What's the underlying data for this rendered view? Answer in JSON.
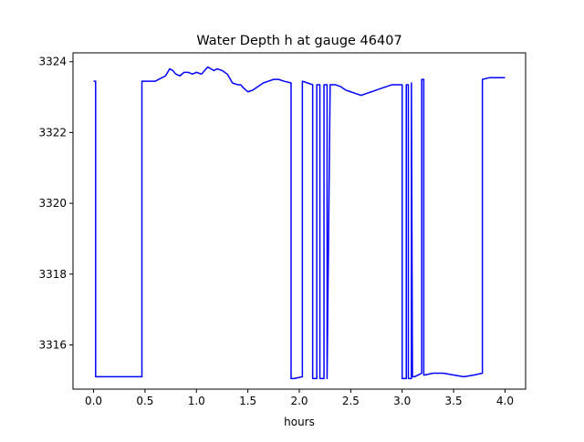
{
  "chart_data": {
    "type": "line",
    "title": "Water Depth h at gauge 46407",
    "xlabel": "hours",
    "ylabel": "",
    "xlim": [
      -0.2,
      4.2
    ],
    "ylim": [
      3314.75,
      3324.25
    ],
    "xticks": [
      0.0,
      0.5,
      1.0,
      1.5,
      2.0,
      2.5,
      3.0,
      3.5,
      4.0
    ],
    "xtick_labels": [
      "0.0",
      "0.5",
      "1.0",
      "1.5",
      "2.0",
      "2.5",
      "3.0",
      "3.5",
      "4.0"
    ],
    "yticks": [
      3316,
      3318,
      3320,
      3322,
      3324
    ],
    "ytick_labels": [
      "3316",
      "3318",
      "3320",
      "3322",
      "3324"
    ],
    "grid": false,
    "series": [
      {
        "color": "#0000ff",
        "x": [
          0.0,
          0.02,
          0.02,
          0.47,
          0.47,
          0.5,
          0.6,
          0.7,
          0.74,
          0.77,
          0.8,
          0.84,
          0.88,
          0.92,
          0.96,
          1.0,
          1.05,
          1.08,
          1.11,
          1.14,
          1.17,
          1.2,
          1.25,
          1.3,
          1.35,
          1.4,
          1.43,
          1.46,
          1.5,
          1.55,
          1.6,
          1.65,
          1.7,
          1.75,
          1.8,
          1.85,
          1.92,
          1.92,
          1.95,
          2.03,
          2.03,
          2.08,
          2.13,
          2.13,
          2.17,
          2.17,
          2.2,
          2.2,
          2.24,
          2.24,
          2.27,
          2.27,
          2.3,
          2.35,
          2.4,
          2.45,
          2.5,
          2.55,
          2.6,
          2.65,
          2.7,
          2.75,
          2.8,
          2.85,
          2.9,
          2.95,
          3.0,
          3.0,
          3.04,
          3.04,
          3.06,
          3.06,
          3.09,
          3.09,
          3.1,
          3.12,
          3.19,
          3.19,
          3.21,
          3.21,
          3.22,
          3.3,
          3.4,
          3.5,
          3.6,
          3.7,
          3.78,
          3.78,
          3.85,
          3.9,
          4.0
        ],
        "y": [
          3323.45,
          3323.45,
          3315.1,
          3315.1,
          3323.45,
          3323.45,
          3323.45,
          3323.6,
          3323.8,
          3323.75,
          3323.65,
          3323.6,
          3323.7,
          3323.7,
          3323.65,
          3323.7,
          3323.65,
          3323.75,
          3323.85,
          3323.8,
          3323.75,
          3323.8,
          3323.75,
          3323.65,
          3323.4,
          3323.35,
          3323.35,
          3323.25,
          3323.15,
          3323.2,
          3323.3,
          3323.4,
          3323.45,
          3323.5,
          3323.5,
          3323.45,
          3323.4,
          3315.05,
          3315.05,
          3315.1,
          3323.45,
          3323.4,
          3323.35,
          3315.05,
          3315.05,
          3323.35,
          3323.35,
          3315.05,
          3315.05,
          3323.35,
          3323.35,
          3315.05,
          3323.35,
          3323.35,
          3323.3,
          3323.2,
          3323.15,
          3323.1,
          3323.05,
          3323.1,
          3323.15,
          3323.2,
          3323.25,
          3323.3,
          3323.35,
          3323.35,
          3323.35,
          3315.05,
          3315.05,
          3323.35,
          3323.35,
          3315.05,
          3315.05,
          3323.4,
          3315.1,
          3315.1,
          3315.2,
          3323.5,
          3323.5,
          3315.15,
          3315.15,
          3315.2,
          3315.2,
          3315.15,
          3315.1,
          3315.15,
          3315.2,
          3323.5,
          3323.55,
          3323.55,
          3323.55
        ]
      }
    ]
  }
}
